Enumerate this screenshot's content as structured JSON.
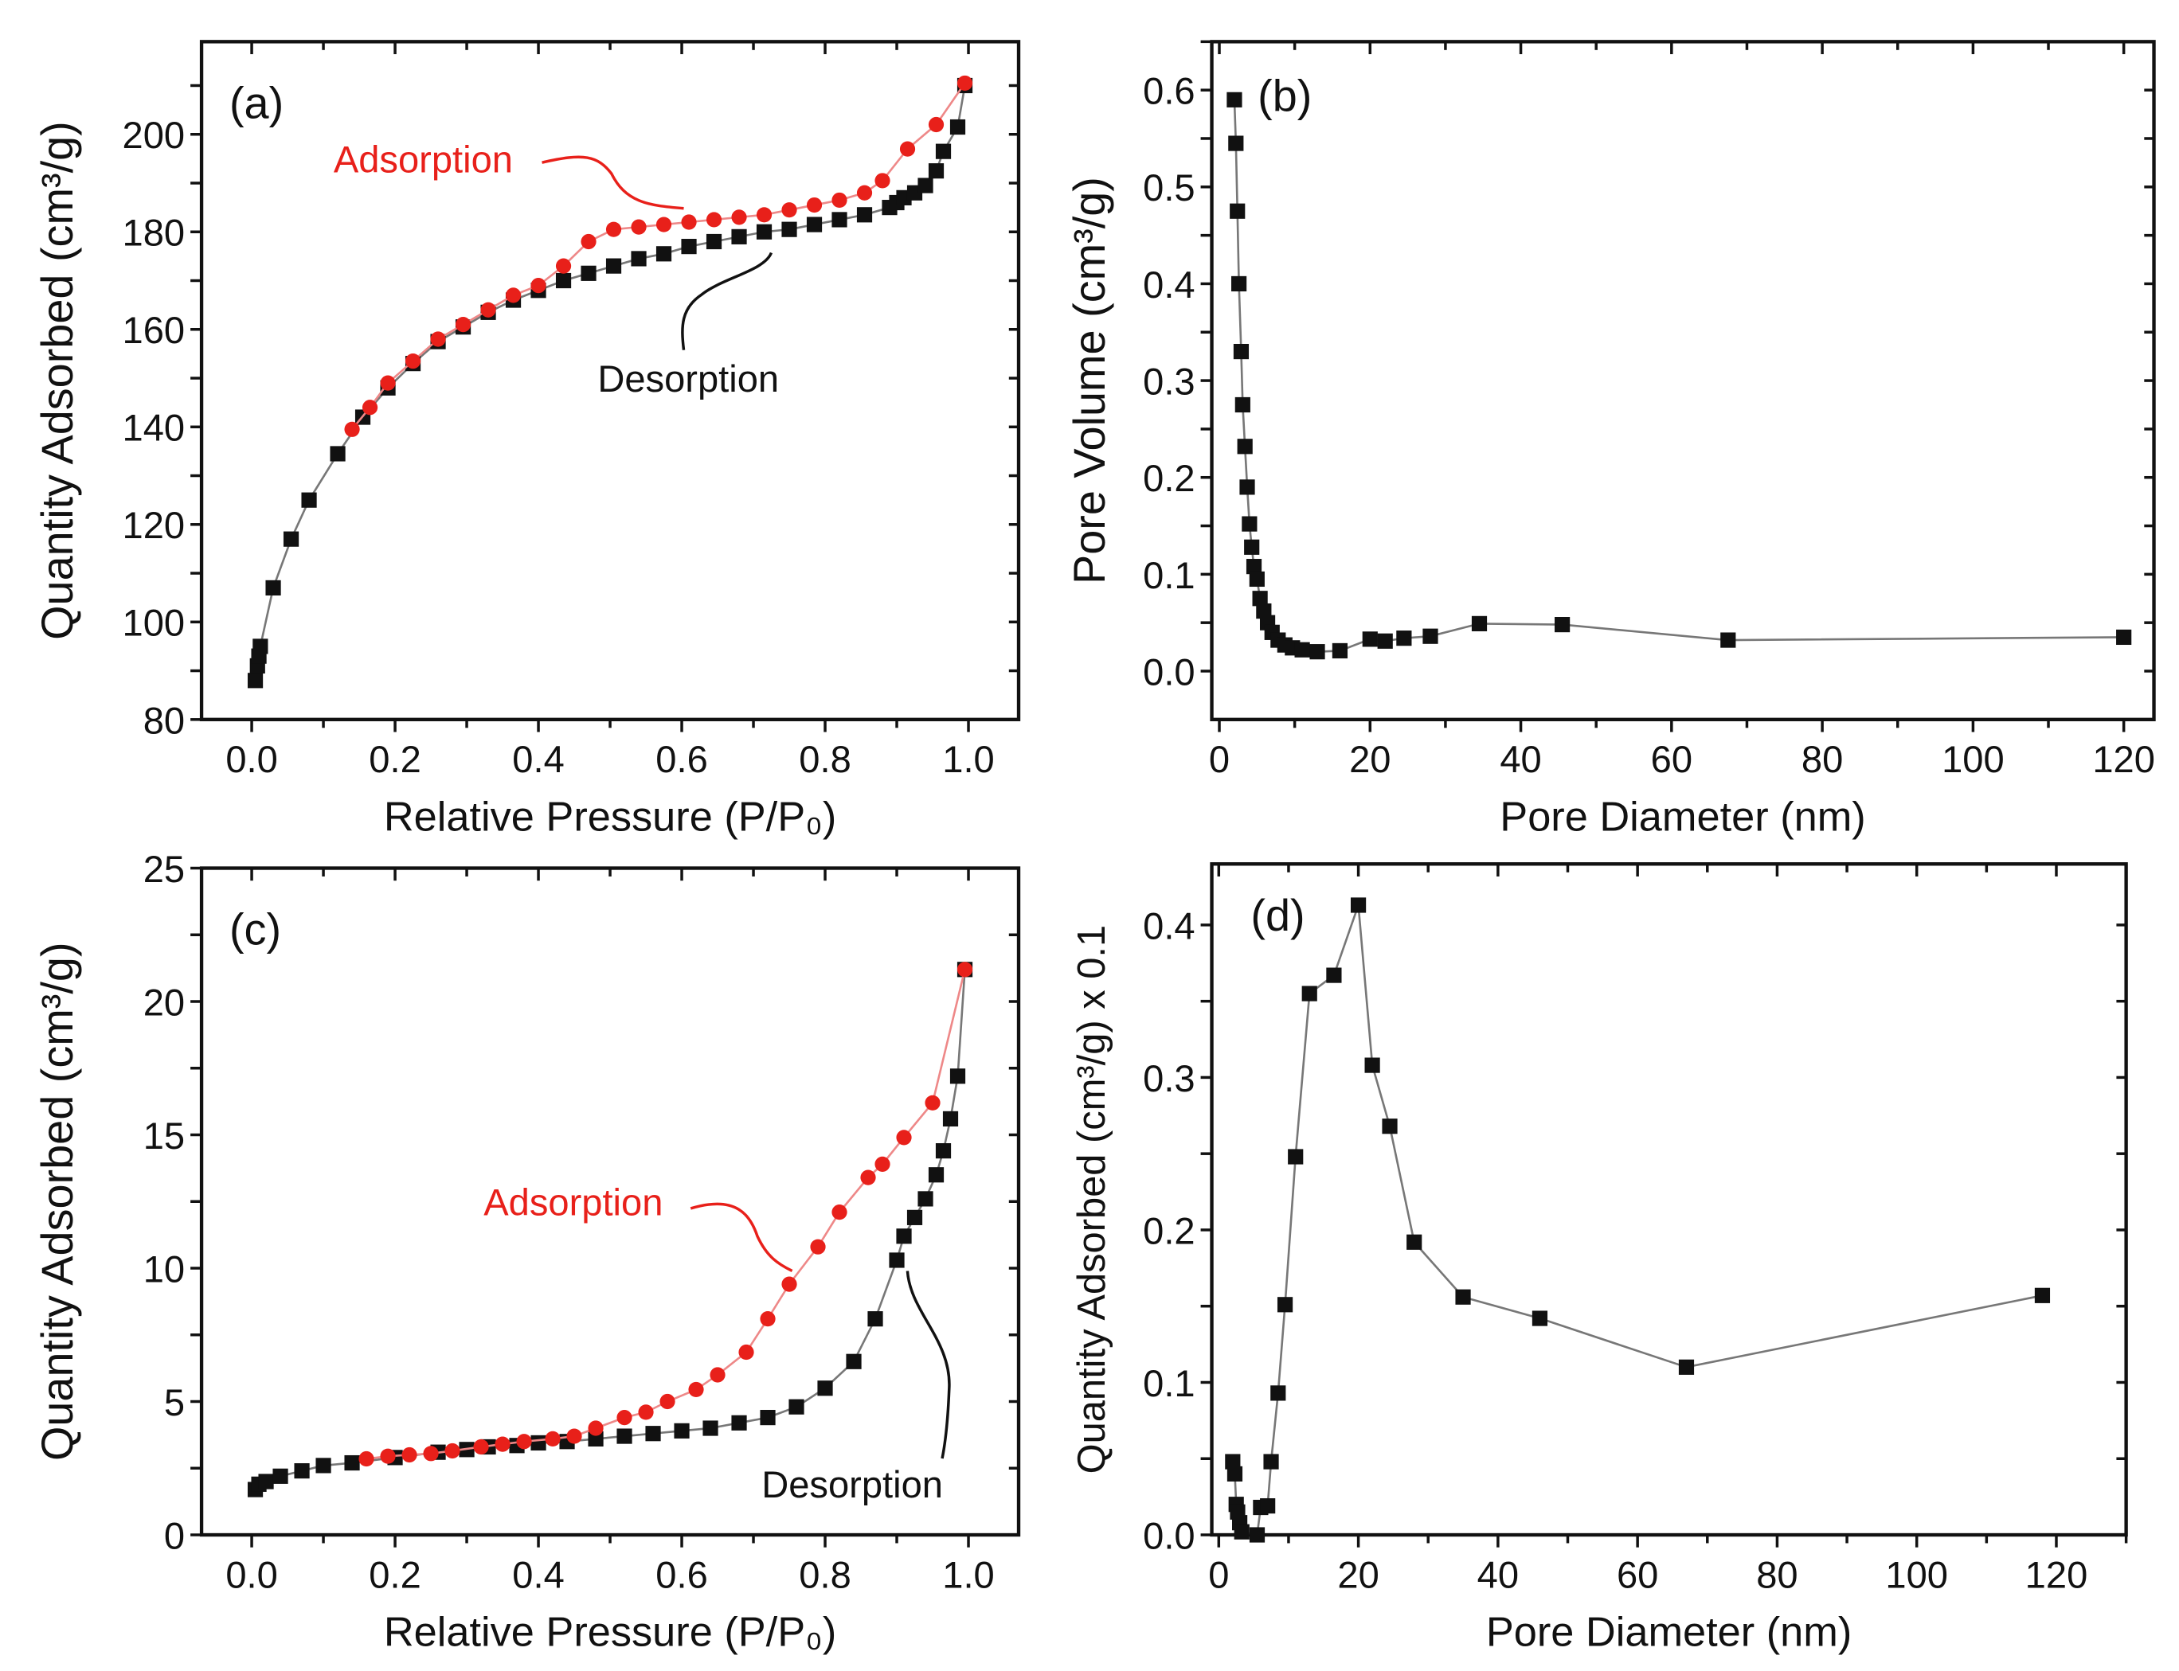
{
  "colors": {
    "adsorption": "#e8201a",
    "desorption": "#111111",
    "line": "#777777"
  },
  "chart_data": [
    {
      "panel": "(a)",
      "type": "line",
      "xlabel": "Relative Pressure (P/P₀)",
      "ylabel": "Quantity Adsorbed (cm³/g)",
      "xlim": [
        -0.07,
        1.07
      ],
      "ylim": [
        80,
        219
      ],
      "xticks": [
        "0.0",
        "0.2",
        "0.4",
        "0.6",
        "0.8",
        "1.0"
      ],
      "xtick_values": [
        0,
        0.2,
        0.4,
        0.6,
        0.8,
        1.0
      ],
      "yticks": [
        "80",
        "100",
        "120",
        "140",
        "160",
        "180",
        "200"
      ],
      "ytick_values": [
        80,
        100,
        120,
        140,
        160,
        180,
        200
      ],
      "annotations": [
        {
          "text": "Adsorption",
          "color": "red"
        },
        {
          "text": "Desorption",
          "color": "black"
        }
      ],
      "series": [
        {
          "name": "Desorption",
          "marker": "square",
          "points": [
            [
              0.005,
              88
            ],
            [
              0.008,
              91
            ],
            [
              0.01,
              93
            ],
            [
              0.012,
              95
            ],
            [
              0.03,
              107
            ],
            [
              0.055,
              117
            ],
            [
              0.08,
              125
            ],
            [
              0.12,
              134.5
            ],
            [
              0.155,
              142
            ],
            [
              0.19,
              148
            ],
            [
              0.225,
              153
            ],
            [
              0.26,
              157.5
            ],
            [
              0.295,
              160.5
            ],
            [
              0.33,
              163.5
            ],
            [
              0.365,
              166
            ],
            [
              0.4,
              168
            ],
            [
              0.435,
              170
            ],
            [
              0.47,
              171.5
            ],
            [
              0.505,
              173
            ],
            [
              0.54,
              174.5
            ],
            [
              0.575,
              175.5
            ],
            [
              0.61,
              177
            ],
            [
              0.645,
              178
            ],
            [
              0.68,
              179
            ],
            [
              0.715,
              180
            ],
            [
              0.75,
              180.5
            ],
            [
              0.785,
              181.5
            ],
            [
              0.82,
              182.5
            ],
            [
              0.855,
              183.5
            ],
            [
              0.89,
              185
            ],
            [
              0.9,
              186
            ],
            [
              0.91,
              187
            ],
            [
              0.925,
              188
            ],
            [
              0.94,
              189.5
            ],
            [
              0.955,
              192.5
            ],
            [
              0.965,
              196.5
            ],
            [
              0.985,
              201.5
            ],
            [
              0.995,
              210
            ]
          ]
        },
        {
          "name": "Adsorption",
          "marker": "circle",
          "points": [
            [
              0.14,
              139.5
            ],
            [
              0.165,
              144
            ],
            [
              0.19,
              149
            ],
            [
              0.225,
              153.5
            ],
            [
              0.26,
              158
            ],
            [
              0.295,
              161
            ],
            [
              0.33,
              164
            ],
            [
              0.365,
              167
            ],
            [
              0.4,
              169
            ],
            [
              0.435,
              173
            ],
            [
              0.47,
              178
            ],
            [
              0.505,
              180.5
            ],
            [
              0.54,
              181
            ],
            [
              0.575,
              181.5
            ],
            [
              0.61,
              182
            ],
            [
              0.645,
              182.5
            ],
            [
              0.68,
              183
            ],
            [
              0.715,
              183.5
            ],
            [
              0.75,
              184.5
            ],
            [
              0.785,
              185.5
            ],
            [
              0.82,
              186.5
            ],
            [
              0.855,
              188
            ],
            [
              0.88,
              190.5
            ],
            [
              0.915,
              197
            ],
            [
              0.955,
              202
            ],
            [
              0.995,
              210.5
            ]
          ]
        }
      ]
    },
    {
      "panel": "(b)",
      "type": "line",
      "xlabel": "Pore Diameter (nm)",
      "ylabel": "Pore Volume (cm³/g)",
      "xlim": [
        -1,
        124
      ],
      "ylim": [
        -0.05,
        0.65
      ],
      "xticks": [
        "0",
        "20",
        "40",
        "60",
        "80",
        "100",
        "120"
      ],
      "xtick_values": [
        0,
        20,
        40,
        60,
        80,
        100,
        120
      ],
      "yticks": [
        "0.0",
        "0.1",
        "0.2",
        "0.3",
        "0.4",
        "0.5",
        "0.6"
      ],
      "ytick_values": [
        0,
        0.1,
        0.2,
        0.3,
        0.4,
        0.5,
        0.6
      ],
      "series": [
        {
          "name": "Pore Volume",
          "marker": "square",
          "points": [
            [
              2,
              0.59
            ],
            [
              2.2,
              0.545
            ],
            [
              2.4,
              0.475
            ],
            [
              2.6,
              0.4
            ],
            [
              2.9,
              0.33
            ],
            [
              3.1,
              0.275
            ],
            [
              3.4,
              0.232
            ],
            [
              3.7,
              0.19
            ],
            [
              4,
              0.152
            ],
            [
              4.3,
              0.128
            ],
            [
              4.6,
              0.108
            ],
            [
              5,
              0.095
            ],
            [
              5.4,
              0.075
            ],
            [
              5.9,
              0.062
            ],
            [
              6.4,
              0.05
            ],
            [
              7,
              0.04
            ],
            [
              7.8,
              0.032
            ],
            [
              8.7,
              0.027
            ],
            [
              9.7,
              0.024
            ],
            [
              11,
              0.022
            ],
            [
              13,
              0.02
            ],
            [
              16,
              0.021
            ],
            [
              20,
              0.033
            ],
            [
              22,
              0.031
            ],
            [
              24.5,
              0.034
            ],
            [
              28,
              0.036
            ],
            [
              34.5,
              0.049
            ],
            [
              45.5,
              0.048
            ],
            [
              67.5,
              0.032
            ],
            [
              120,
              0.035
            ]
          ]
        }
      ]
    },
    {
      "panel": "(c)",
      "type": "line",
      "xlabel": "Relative Pressure (P/P₀)",
      "ylabel": "Quantity Adsorbed (cm³/g)",
      "xlim": [
        -0.07,
        1.07
      ],
      "ylim": [
        0,
        25
      ],
      "xticks": [
        "0.0",
        "0.2",
        "0.4",
        "0.6",
        "0.8",
        "1.0"
      ],
      "xtick_values": [
        0,
        0.2,
        0.4,
        0.6,
        0.8,
        1.0
      ],
      "yticks": [
        "0",
        "5",
        "10",
        "15",
        "20",
        "25"
      ],
      "ytick_values": [
        0,
        5,
        10,
        15,
        20,
        25
      ],
      "annotations": [
        {
          "text": "Adsorption",
          "color": "red"
        },
        {
          "text": "Desorption",
          "color": "black"
        }
      ],
      "series": [
        {
          "name": "Desorption",
          "marker": "square",
          "points": [
            [
              0.005,
              1.7
            ],
            [
              0.01,
              1.9
            ],
            [
              0.02,
              2.0
            ],
            [
              0.04,
              2.2
            ],
            [
              0.07,
              2.4
            ],
            [
              0.1,
              2.6
            ],
            [
              0.14,
              2.7
            ],
            [
              0.2,
              2.9
            ],
            [
              0.26,
              3.1
            ],
            [
              0.3,
              3.2
            ],
            [
              0.33,
              3.3
            ],
            [
              0.37,
              3.35
            ],
            [
              0.4,
              3.45
            ],
            [
              0.44,
              3.5
            ],
            [
              0.48,
              3.6
            ],
            [
              0.52,
              3.7
            ],
            [
              0.56,
              3.8
            ],
            [
              0.6,
              3.9
            ],
            [
              0.64,
              4.0
            ],
            [
              0.68,
              4.2
            ],
            [
              0.72,
              4.4
            ],
            [
              0.76,
              4.8
            ],
            [
              0.8,
              5.5
            ],
            [
              0.84,
              6.5
            ],
            [
              0.87,
              8.1
            ],
            [
              0.9,
              10.3
            ],
            [
              0.91,
              11.2
            ],
            [
              0.925,
              11.9
            ],
            [
              0.94,
              12.6
            ],
            [
              0.955,
              13.5
            ],
            [
              0.965,
              14.4
            ],
            [
              0.975,
              15.6
            ],
            [
              0.985,
              17.2
            ],
            [
              0.995,
              21.2
            ]
          ]
        },
        {
          "name": "Adsorption",
          "marker": "circle",
          "points": [
            [
              0.16,
              2.85
            ],
            [
              0.19,
              2.95
            ],
            [
              0.22,
              3.0
            ],
            [
              0.25,
              3.05
            ],
            [
              0.28,
              3.15
            ],
            [
              0.32,
              3.3
            ],
            [
              0.35,
              3.4
            ],
            [
              0.38,
              3.5
            ],
            [
              0.42,
              3.6
            ],
            [
              0.45,
              3.7
            ],
            [
              0.48,
              4.0
            ],
            [
              0.52,
              4.4
            ],
            [
              0.55,
              4.6
            ],
            [
              0.58,
              5.0
            ],
            [
              0.62,
              5.45
            ],
            [
              0.65,
              6.0
            ],
            [
              0.69,
              6.85
            ],
            [
              0.72,
              8.1
            ],
            [
              0.75,
              9.4
            ],
            [
              0.79,
              10.8
            ],
            [
              0.82,
              12.1
            ],
            [
              0.86,
              13.4
            ],
            [
              0.88,
              13.9
            ],
            [
              0.91,
              14.9
            ],
            [
              0.95,
              16.2
            ],
            [
              0.995,
              21.2
            ]
          ]
        }
      ]
    },
    {
      "panel": "(d)",
      "type": "line",
      "xlabel": "Pore Diameter (nm)",
      "ylabel": "Quantity Adsorbed (cm³/g) x 0.1",
      "xlim": [
        -1,
        130
      ],
      "ylim": [
        0,
        0.44
      ],
      "xticks": [
        "0",
        "20",
        "40",
        "60",
        "80",
        "100",
        "120"
      ],
      "xtick_values": [
        0,
        20,
        40,
        60,
        80,
        100,
        120
      ],
      "yticks": [
        "0.0",
        "0.1",
        "0.2",
        "0.3",
        "0.4"
      ],
      "ytick_values": [
        0,
        0.1,
        0.2,
        0.3,
        0.4
      ],
      "series": [
        {
          "name": "Quantity Adsorbed",
          "marker": "square",
          "points": [
            [
              2,
              0.048
            ],
            [
              2.3,
              0.04
            ],
            [
              2.5,
              0.02
            ],
            [
              2.7,
              0.015
            ],
            [
              3,
              0.008
            ],
            [
              3.3,
              0.002
            ],
            [
              5.5,
              0
            ],
            [
              6,
              0.018
            ],
            [
              7,
              0.019
            ],
            [
              7.5,
              0.048
            ],
            [
              8.5,
              0.093
            ],
            [
              9.5,
              0.151
            ],
            [
              11,
              0.248
            ],
            [
              13,
              0.355
            ],
            [
              16.5,
              0.367
            ],
            [
              20,
              0.413
            ],
            [
              22,
              0.308
            ],
            [
              24.5,
              0.268
            ],
            [
              28,
              0.192
            ],
            [
              35,
              0.156
            ],
            [
              46,
              0.142
            ],
            [
              67,
              0.11
            ],
            [
              118,
              0.157
            ]
          ]
        }
      ]
    }
  ]
}
